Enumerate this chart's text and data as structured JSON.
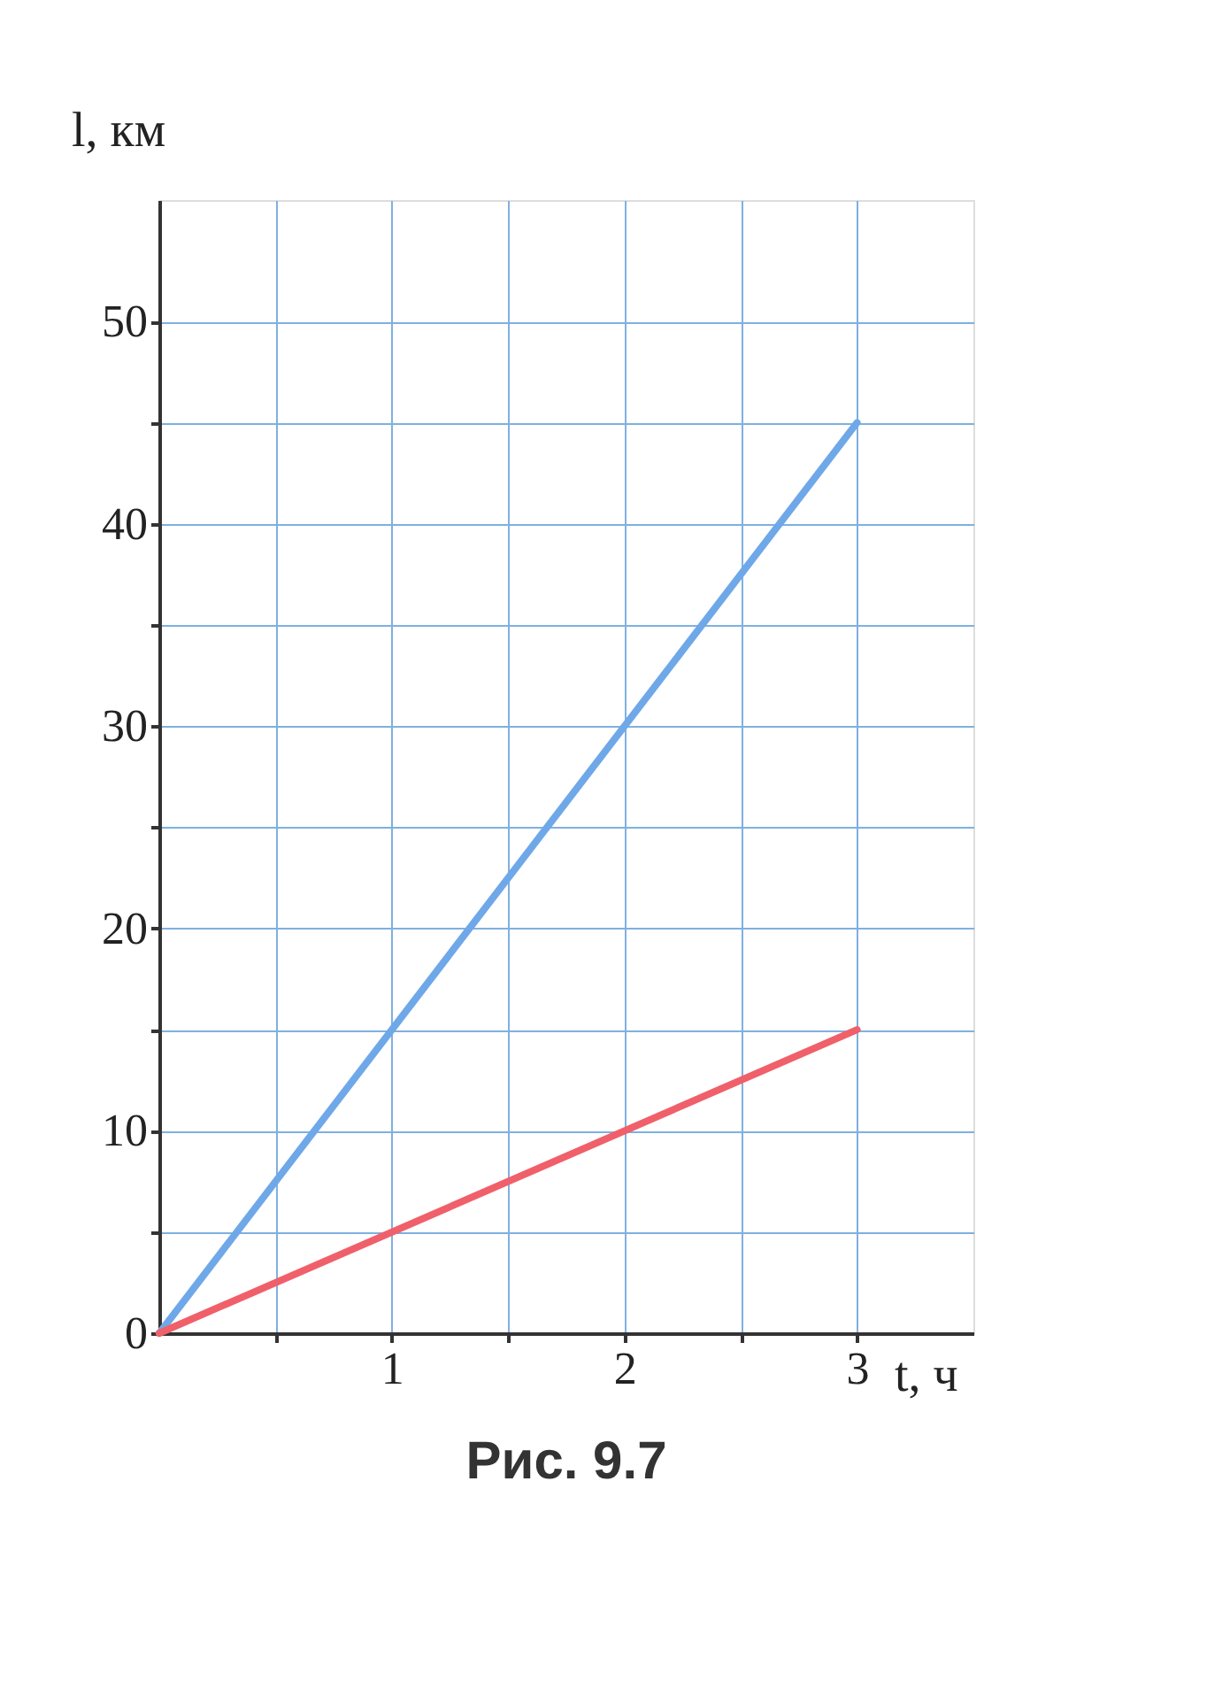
{
  "chart_data": {
    "type": "line",
    "xlabel": "t, ч",
    "ylabel": "l, км",
    "x": [
      0,
      3
    ],
    "series": [
      {
        "color": "#6fa8e8",
        "values": [
          0,
          45
        ]
      },
      {
        "color": "#f0606a",
        "values": [
          0,
          15
        ]
      }
    ],
    "xlim": [
      0,
      3.5
    ],
    "ylim": [
      0,
      56
    ],
    "xticks": [
      {
        "value": 0.5,
        "label": null
      },
      1,
      {
        "value": 1.5,
        "label": null
      },
      2,
      {
        "value": 2.5,
        "label": null
      },
      3
    ],
    "yticks": [
      0,
      {
        "value": 5,
        "label": null
      },
      10,
      {
        "value": 15,
        "label": null
      },
      20,
      {
        "value": 25,
        "label": null
      },
      30,
      {
        "value": 35,
        "label": null
      },
      40,
      {
        "value": 45,
        "label": null
      },
      50
    ],
    "grid": true,
    "marker": "none",
    "line_style": "solid",
    "annotations": [
      "Рис. 9.7"
    ]
  }
}
